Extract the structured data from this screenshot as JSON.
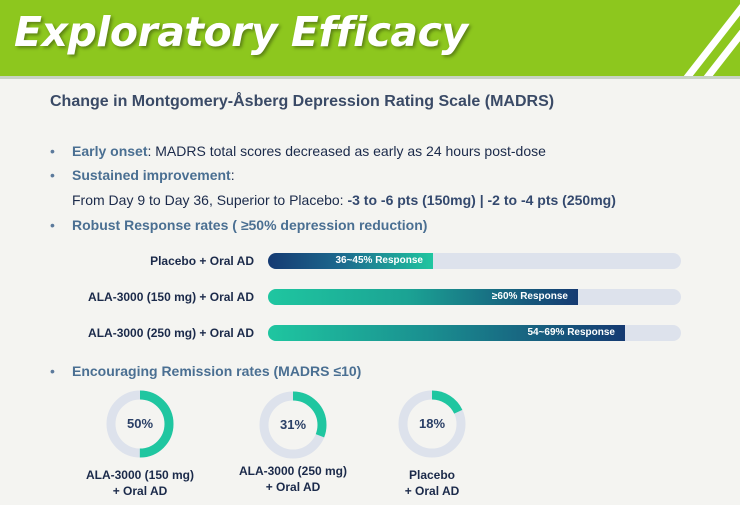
{
  "header": {
    "title": "Exploratory Efficacy"
  },
  "colors": {
    "header_green": "#8dc71e",
    "teal": "#1fc6a0",
    "navy": "#153a72",
    "track": "#dde2ec"
  },
  "subtitle": "Change in Montgomery-Åsberg Depression Rating Scale (MADRS)",
  "bullets": {
    "early_onset": {
      "label": "Early onset",
      "text": ": MADRS total scores decreased as early as 24 hours post-dose"
    },
    "sustained": {
      "label": "Sustained improvement",
      "colon": ":"
    },
    "sustained_detail": {
      "prefix": "From Day 9 to Day 36, Superior to Placebo: ",
      "value": "-3 to -6 pts (150mg) | -2 to -4 pts (250mg)"
    },
    "robust": {
      "label": "Robust Response rates ( ≥50% depression reduction)"
    },
    "remission": {
      "label": "Encouraging Remission rates (MADRS ≤10)"
    }
  },
  "response_bars": [
    {
      "label": "Placebo + Oral AD",
      "text": "36~45% Response",
      "fraction": 0.4
    },
    {
      "label": "ALA-3000 (150 mg)  + Oral AD",
      "text": "≥60% Response",
      "fraction": 0.75
    },
    {
      "label": "ALA-3000 (250 mg)  + Oral AD",
      "text": "54~69% Response",
      "fraction": 0.865
    }
  ],
  "remission": [
    {
      "pct_text": "50%",
      "value": 50,
      "line1": "ALA-3000 (150 mg)",
      "line2": "+ Oral AD"
    },
    {
      "pct_text": "31%",
      "value": 31,
      "line1": "ALA-3000 (250 mg)",
      "line2": "+ Oral AD"
    },
    {
      "pct_text": "18%",
      "value": 18,
      "line1": "Placebo",
      "line2": "+ Oral AD"
    }
  ]
}
